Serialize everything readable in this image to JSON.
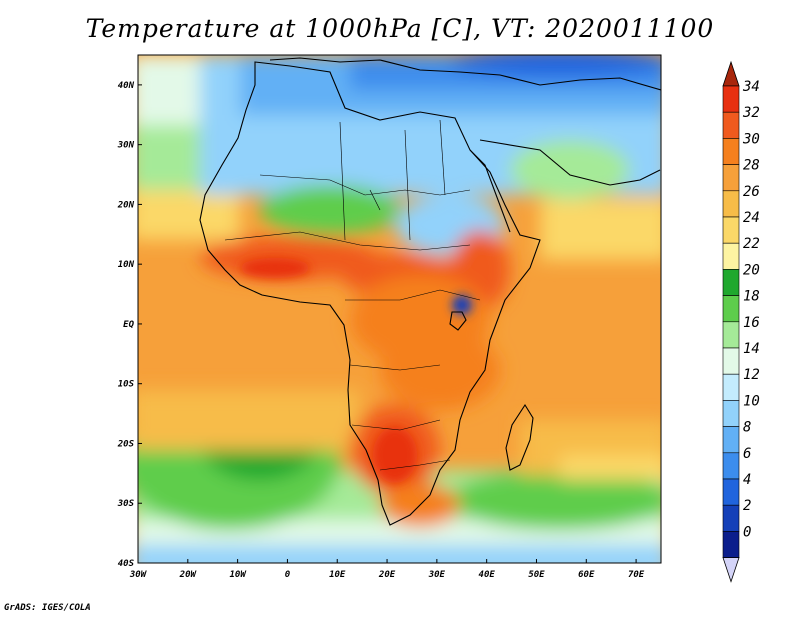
{
  "title": "Temperature at 1000hPa [C], VT: 2020011100",
  "credit": "GrADS: IGES/COLA",
  "map": {
    "variable": "Temperature",
    "level": "1000hPa",
    "units": "C",
    "valid_time": "2020011100",
    "lon_range": [
      -30,
      75
    ],
    "lat_range": [
      -40,
      45
    ],
    "lon_ticks": [
      "30W",
      "20W",
      "10W",
      "0",
      "10E",
      "20E",
      "30E",
      "40E",
      "50E",
      "60E",
      "70E"
    ],
    "lat_ticks": [
      "40N",
      "30N",
      "20N",
      "10N",
      "EQ",
      "10S",
      "20S",
      "30S",
      "40S"
    ]
  },
  "colorbar": {
    "labels": [
      "34",
      "32",
      "30",
      "28",
      "26",
      "24",
      "22",
      "20",
      "18",
      "16",
      "14",
      "12",
      "10",
      "8",
      "6",
      "4",
      "2",
      "0"
    ],
    "colors": [
      "#e83010",
      "#f05a1e",
      "#f5801e",
      "#f6a03a",
      "#f7bc48",
      "#fbd868",
      "#fdf4a2",
      "#1fa82e",
      "#5ecd4c",
      "#a5ea98",
      "#e3f9e8",
      "#c4ecfd",
      "#92d2fb",
      "#62b0f5",
      "#3c8ded",
      "#2064dd",
      "#1440b8",
      "#0b1e8c"
    ],
    "over_color": "#a8260c",
    "under_color": "#d4d4f8"
  }
}
